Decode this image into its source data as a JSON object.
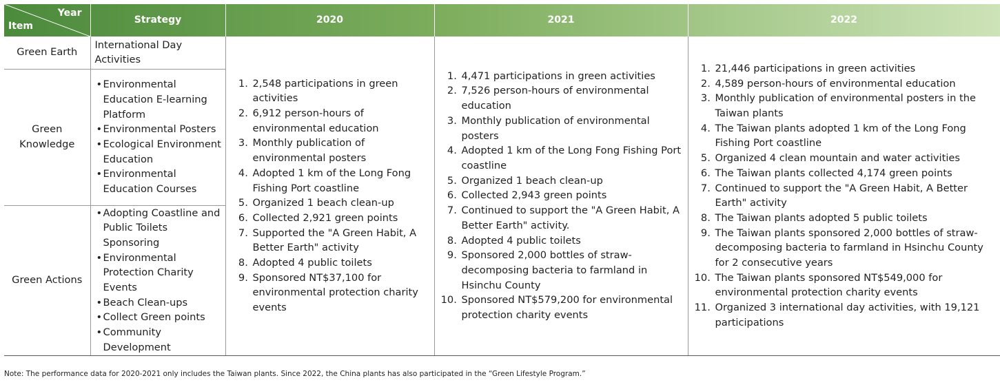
{
  "header": {
    "year": "Year",
    "item": "Item",
    "strategy": "Strategy",
    "years": [
      "2020",
      "2021",
      "2022"
    ]
  },
  "rows": [
    {
      "item": "Green Earth",
      "strategy": "International Day Activities"
    },
    {
      "item": "Green Knowledge",
      "strategy": [
        "Environmental Education E-learning Platform",
        "Environmental Posters",
        "Ecological Environment Education",
        "Environmental Education Courses"
      ]
    },
    {
      "item": "Green Actions",
      "strategy": [
        "Adopting Coastline and Public Toilets Sponsoring",
        "Environmental Protection Charity Events",
        "Beach Clean-ups",
        "Collect Green points",
        "Community Development"
      ]
    }
  ],
  "results": [
    [
      "2,548 participations in green activities",
      "6,912 person-hours of environmental education",
      "Monthly publication of environmental posters",
      "Adopted 1 km of the Long Fong Fishing Port coastline",
      "Organized 1 beach clean-up",
      "Collected 2,921 green points",
      "Supported the \"A Green Habit, A Better Earth\" activity",
      "Adopted 4 public toilets",
      "Sponsored NT$37,100 for environmental protection charity events"
    ],
    [
      "4,471 participations in green activities",
      "7,526 person-hours of environmental education",
      "Monthly publication of environmental posters",
      "Adopted 1 km of the Long Fong Fishing Port coastline",
      "Organized 1 beach clean-up",
      "Collected 2,943 green points",
      "Continued to support the \"A Green Habit, A Better Earth\" activity.",
      "Adopted 4 public toilets",
      "Sponsored 2,000 bottles of straw-decomposing bacteria to farmland in Hsinchu County",
      "Sponsored NT$579,200 for environmental protection charity events"
    ],
    [
      "21,446 participations in green activities",
      "4,589 person-hours of environmental education",
      "Monthly publication of environmental posters in the Taiwan plants",
      "The Taiwan plants adopted 1 km of the Long Fong Fishing Port coastline",
      "Organized 4 clean mountain and water activities",
      "The Taiwan plants collected 4,174 green points",
      "Continued to support the \"A Green Habit, A Better Earth\" activity",
      "The Taiwan plants adopted 5 public toilets",
      "The Taiwan plants sponsored 2,000 bottles of straw-decomposing bacteria to farmland in Hsinchu County for 2 consecutive years",
      "The Taiwan plants sponsored NT$549,000 for environmental protection charity events",
      "Organized 3 international day activities, with 19,121 participations"
    ]
  ],
  "note": "Note: The performance data for 2020-2021 only includes the Taiwan plants. Since 2022, the China plants has also participated in the “Green Lifestyle Program.”"
}
